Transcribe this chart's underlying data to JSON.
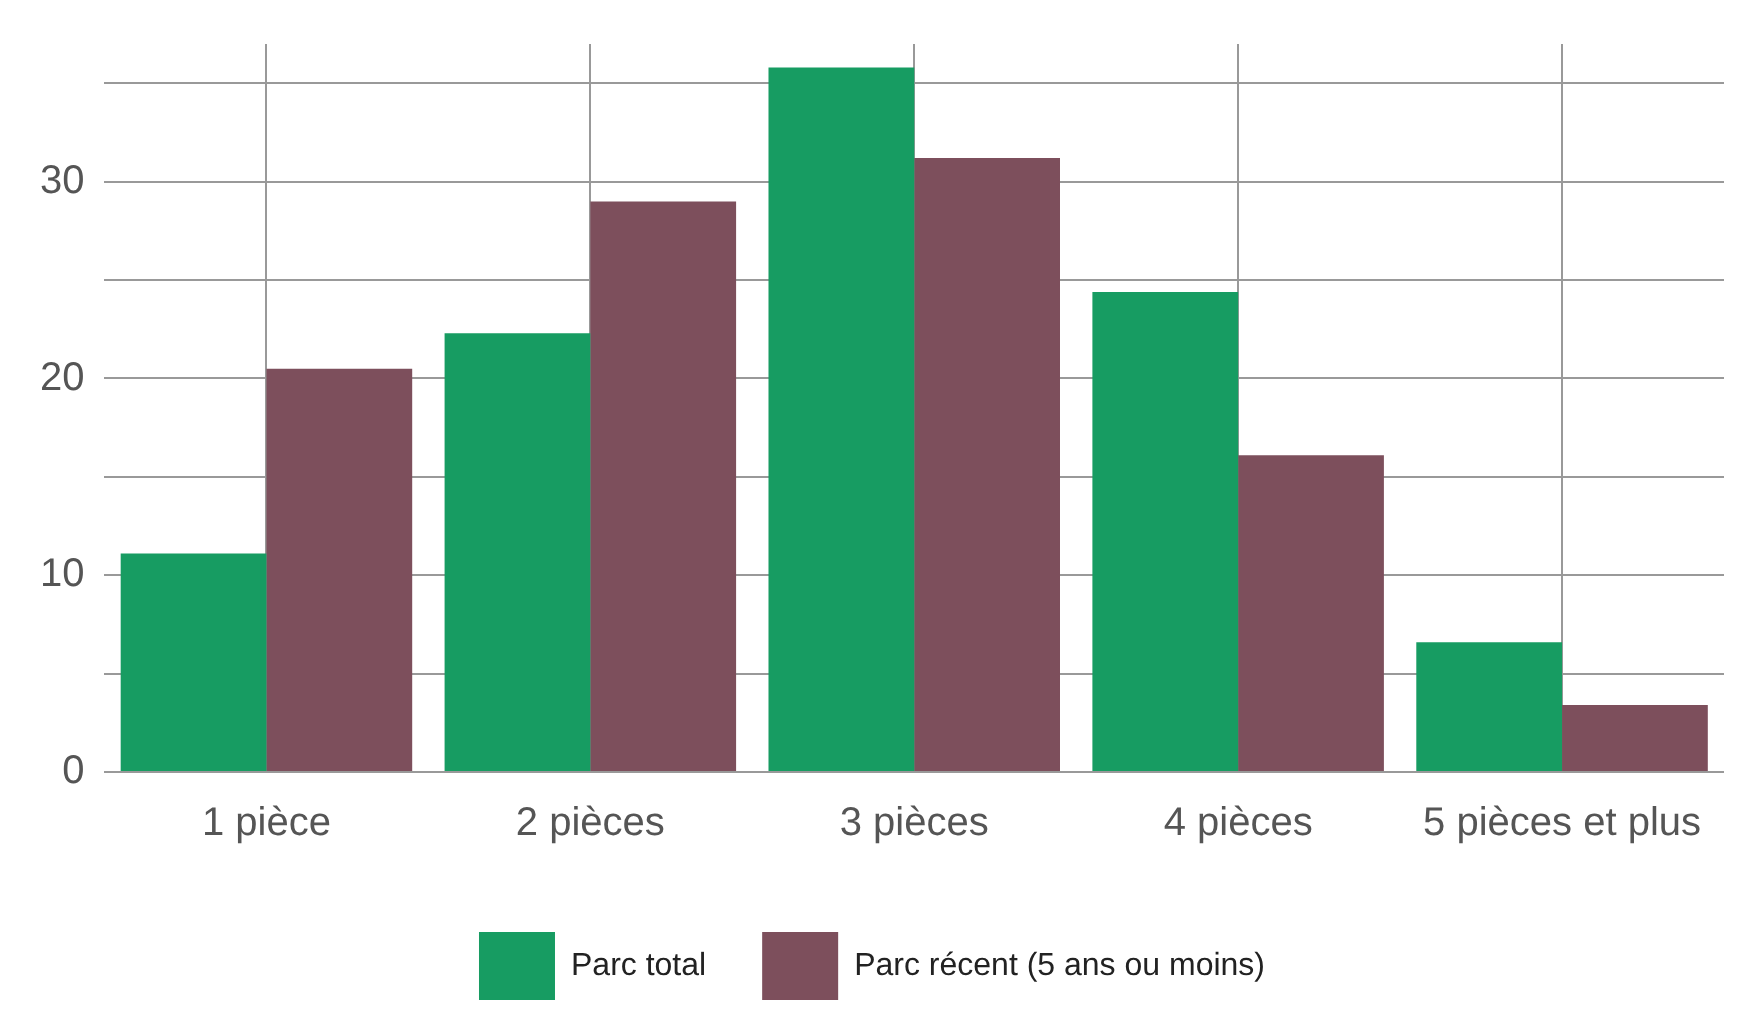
{
  "chart_data": {
    "type": "bar",
    "categories": [
      "1 pièce",
      "2 pièces",
      "3 pièces",
      "4 pièces",
      "5 pièces et plus"
    ],
    "series": [
      {
        "name": "Parc total",
        "color": "#179c62",
        "values": [
          11.1,
          22.3,
          35.8,
          24.4,
          6.6
        ]
      },
      {
        "name": "Parc récent (5 ans ou moins)",
        "color": "#7d4f5c",
        "values": [
          20.5,
          29.0,
          31.2,
          16.1,
          3.4
        ]
      }
    ],
    "ylim": [
      0,
      37
    ],
    "yticks": [
      0,
      {
        "value": 5,
        "label": null
      },
      10,
      {
        "value": 15,
        "label": null
      },
      20,
      {
        "value": 25,
        "label": null
      },
      30,
      {
        "value": 35,
        "label": null
      }
    ],
    "grid": true,
    "legend": "bottom"
  }
}
